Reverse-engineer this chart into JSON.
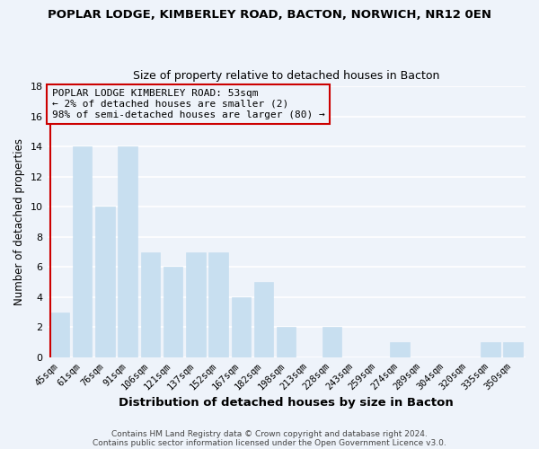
{
  "title": "POPLAR LODGE, KIMBERLEY ROAD, BACTON, NORWICH, NR12 0EN",
  "subtitle": "Size of property relative to detached houses in Bacton",
  "xlabel": "Distribution of detached houses by size in Bacton",
  "ylabel": "Number of detached properties",
  "bar_color": "#c8dff0",
  "bar_edge_color": "#c8dff0",
  "highlight_bar_edge_color": "#cc0000",
  "categories": [
    "45sqm",
    "61sqm",
    "76sqm",
    "91sqm",
    "106sqm",
    "121sqm",
    "137sqm",
    "152sqm",
    "167sqm",
    "182sqm",
    "198sqm",
    "213sqm",
    "228sqm",
    "243sqm",
    "259sqm",
    "274sqm",
    "289sqm",
    "304sqm",
    "320sqm",
    "335sqm",
    "350sqm"
  ],
  "values": [
    3,
    14,
    10,
    14,
    7,
    6,
    7,
    7,
    4,
    5,
    2,
    0,
    2,
    0,
    0,
    1,
    0,
    0,
    0,
    1,
    1
  ],
  "highlight_index": 0,
  "ylim": [
    0,
    18
  ],
  "yticks": [
    0,
    2,
    4,
    6,
    8,
    10,
    12,
    14,
    16,
    18
  ],
  "annotation_text": "POPLAR LODGE KIMBERLEY ROAD: 53sqm\n← 2% of detached houses are smaller (2)\n98% of semi-detached houses are larger (80) →",
  "footer_line1": "Contains HM Land Registry data © Crown copyright and database right 2024.",
  "footer_line2": "Contains public sector information licensed under the Open Government Licence v3.0.",
  "bg_color": "#eef3fa",
  "grid_color": "#ffffff",
  "annotation_box_edge_color": "#cc0000"
}
